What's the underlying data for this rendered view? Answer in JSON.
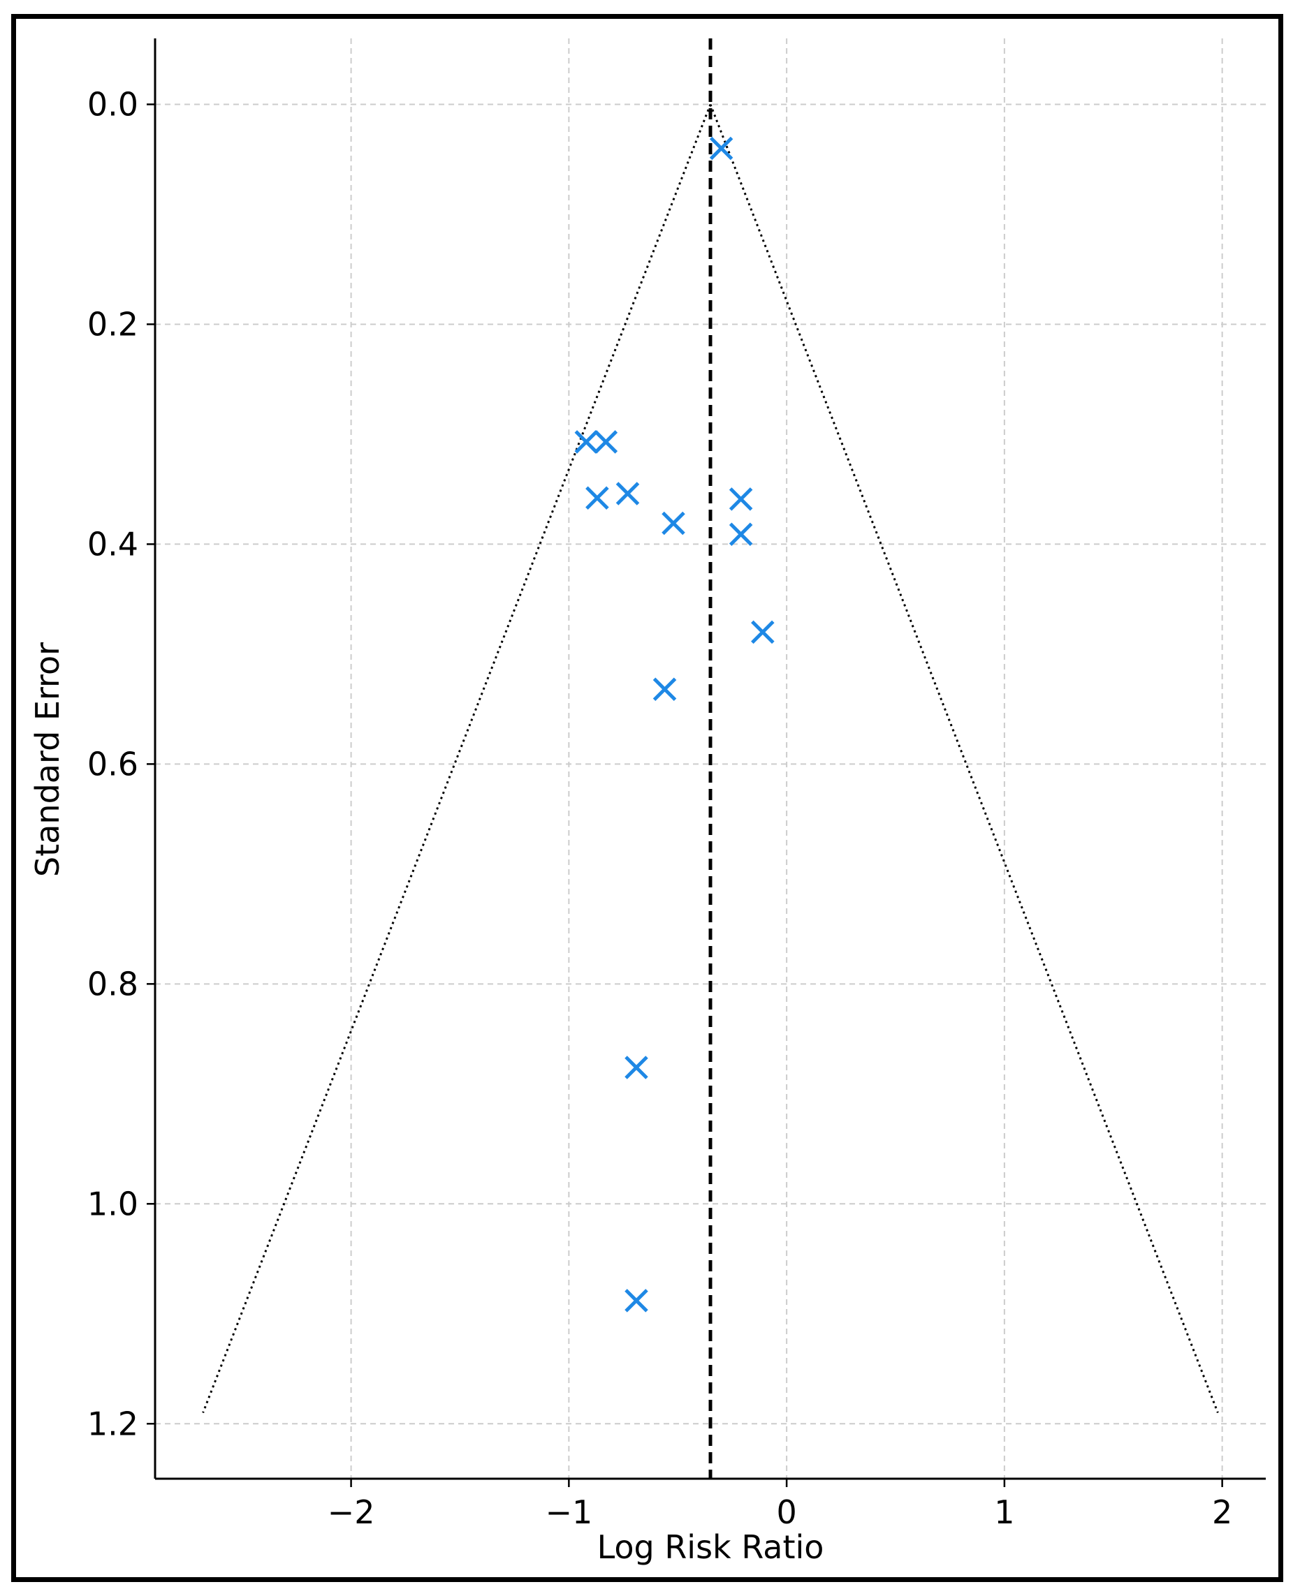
{
  "chart_data": {
    "type": "scatter",
    "title": "",
    "xlabel": "Log Risk Ratio",
    "ylabel": "Standard Error",
    "xlim": [
      -2.9,
      2.2
    ],
    "ylim": [
      1.25,
      -0.06
    ],
    "y_inverted": true,
    "grid": true,
    "xticks": [
      -2,
      -1,
      0,
      1,
      2
    ],
    "xtick_labels": [
      "−2",
      "−1",
      "0",
      "1",
      "2"
    ],
    "yticks": [
      0.0,
      0.2,
      0.4,
      0.6,
      0.8,
      1.0,
      1.2
    ],
    "ytick_labels": [
      "0.0",
      "0.2",
      "0.4",
      "0.6",
      "0.8",
      "1.0",
      "1.2"
    ],
    "pooled_estimate": -0.35,
    "funnel_bounds": {
      "se_max": 1.19,
      "lower_x_at_se_max": -2.68,
      "upper_x_at_se_max": 1.98
    },
    "series": [
      {
        "name": "Studies",
        "marker": "x",
        "color": "#1E88E5",
        "points": [
          {
            "x": -0.3,
            "y": 0.04
          },
          {
            "x": -0.92,
            "y": 0.307
          },
          {
            "x": -0.83,
            "y": 0.307
          },
          {
            "x": -0.87,
            "y": 0.358
          },
          {
            "x": -0.73,
            "y": 0.354
          },
          {
            "x": -0.52,
            "y": 0.381
          },
          {
            "x": -0.21,
            "y": 0.359
          },
          {
            "x": -0.21,
            "y": 0.391
          },
          {
            "x": -0.11,
            "y": 0.48
          },
          {
            "x": -0.56,
            "y": 0.532
          },
          {
            "x": -0.69,
            "y": 0.876
          },
          {
            "x": -0.69,
            "y": 1.088
          }
        ]
      }
    ]
  }
}
